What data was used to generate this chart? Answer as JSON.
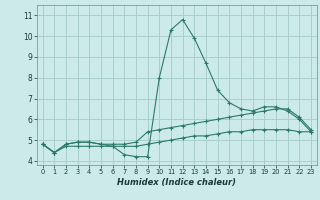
{
  "xlabel": "Humidex (Indice chaleur)",
  "x": [
    0,
    1,
    2,
    3,
    4,
    5,
    6,
    7,
    8,
    9,
    10,
    11,
    12,
    13,
    14,
    15,
    16,
    17,
    18,
    19,
    20,
    21,
    22,
    23
  ],
  "line1": [
    4.8,
    4.4,
    4.8,
    4.9,
    4.9,
    4.8,
    4.7,
    4.3,
    4.2,
    4.2,
    8.0,
    10.3,
    10.8,
    9.9,
    8.7,
    7.4,
    6.8,
    6.5,
    6.4,
    6.6,
    6.6,
    6.4,
    6.0,
    5.4
  ],
  "line2": [
    4.8,
    4.4,
    4.8,
    4.9,
    4.9,
    4.8,
    4.8,
    4.8,
    4.9,
    5.4,
    5.5,
    5.6,
    5.7,
    5.8,
    5.9,
    6.0,
    6.1,
    6.2,
    6.3,
    6.4,
    6.5,
    6.5,
    6.1,
    5.5
  ],
  "line3": [
    4.8,
    4.4,
    4.7,
    4.7,
    4.7,
    4.7,
    4.7,
    4.7,
    4.7,
    4.8,
    4.9,
    5.0,
    5.1,
    5.2,
    5.2,
    5.3,
    5.4,
    5.4,
    5.5,
    5.5,
    5.5,
    5.5,
    5.4,
    5.4
  ],
  "line_color": "#2a7a6a",
  "bg_color": "#cceaea",
  "grid_color": "#aacece",
  "ylim": [
    3.8,
    11.5
  ],
  "xlim": [
    -0.5,
    23.5
  ],
  "yticks": [
    4,
    5,
    6,
    7,
    8,
    9,
    10,
    11
  ],
  "xticks": [
    0,
    1,
    2,
    3,
    4,
    5,
    6,
    7,
    8,
    9,
    10,
    11,
    12,
    13,
    14,
    15,
    16,
    17,
    18,
    19,
    20,
    21,
    22,
    23
  ],
  "tick_color": "#1a3a3a",
  "xlabel_fontsize": 6.0,
  "ytick_fontsize": 5.5,
  "xtick_fontsize": 4.8
}
